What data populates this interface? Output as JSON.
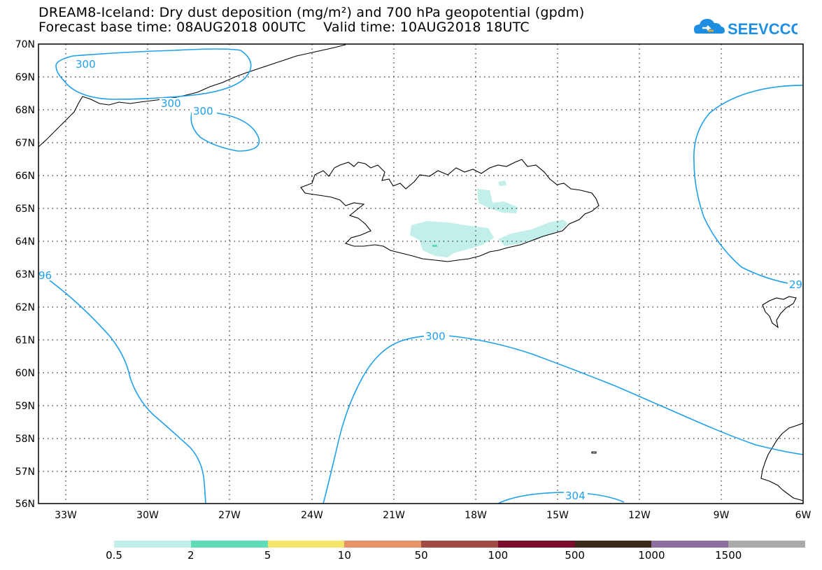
{
  "title": {
    "line1": "DREAM8-Iceland: Dry dust deposition (mg/m²) and 700 hPa geopotential (gpdm)",
    "line2_left": "Forecast base time: 08AUG2018 00UTC",
    "line2_right": "Valid time: 10AUG2018 18UTC"
  },
  "logo": {
    "text": "SEEVCCC",
    "color": "#1e8fe0",
    "icon": "cloud-logo-icon"
  },
  "map": {
    "lon_labels": [
      "33W",
      "30W",
      "27W",
      "24W",
      "21W",
      "18W",
      "15W",
      "12W",
      "9W",
      "6W"
    ],
    "lat_labels": [
      "70N",
      "69N",
      "68N",
      "67N",
      "66N",
      "65N",
      "64N",
      "63N",
      "62N",
      "61N",
      "60N",
      "59N",
      "58N",
      "57N",
      "56N"
    ],
    "contour_labels": [
      "300",
      "300",
      "300",
      "300",
      "96",
      "29",
      "304"
    ],
    "contour_color": "#1ea0ec",
    "dust_fill_color": "#c2efe9",
    "dust_dark_color": "#5fdcb8"
  },
  "legend": {
    "colors": [
      "#c2efe9",
      "#5fdcb8",
      "#f5e56b",
      "#e8926a",
      "#a04a44",
      "#7a0b2a",
      "#3a2a1a",
      "#8c6ea0",
      "#aaaaaa"
    ],
    "labels": [
      "0.5",
      "2",
      "5",
      "10",
      "50",
      "100",
      "500",
      "1000",
      "1500"
    ]
  }
}
